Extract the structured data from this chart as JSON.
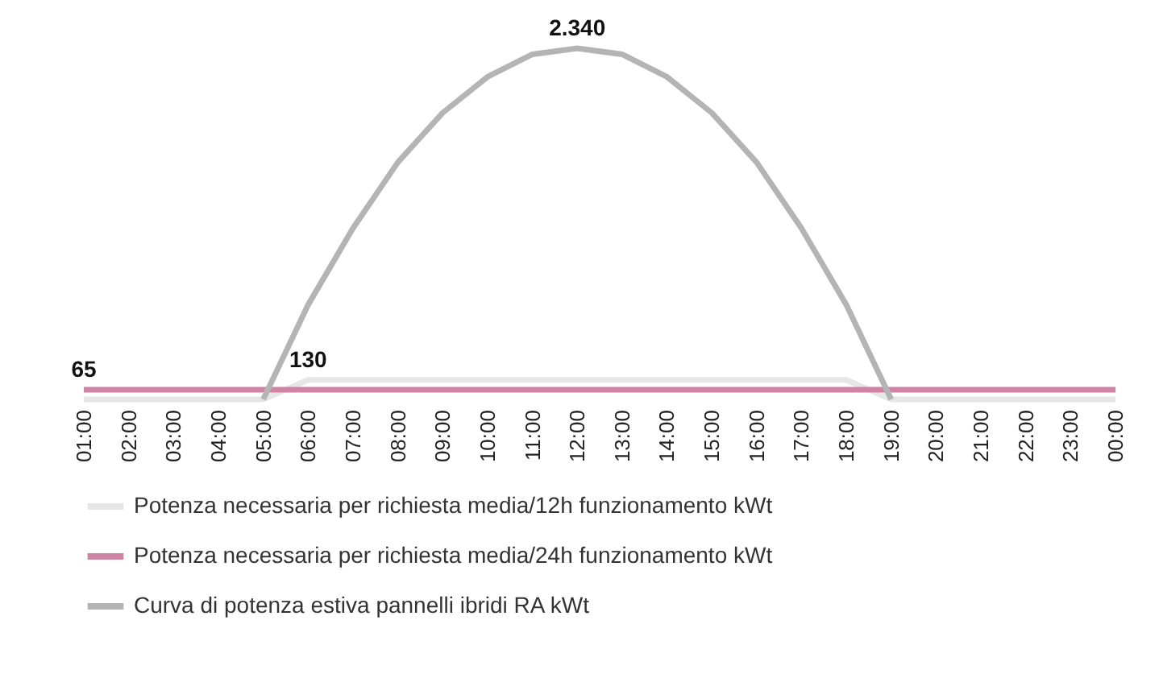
{
  "chart_data": {
    "type": "line",
    "categories": [
      "01:00",
      "02:00",
      "03:00",
      "04:00",
      "05:00",
      "06:00",
      "07:00",
      "08:00",
      "09:00",
      "10:00",
      "11:00",
      "12:00",
      "13:00",
      "14:00",
      "15:00",
      "16:00",
      "17:00",
      "18:00",
      "19:00",
      "20:00",
      "21:00",
      "22:00",
      "23:00",
      "00:00"
    ],
    "series": [
      {
        "name": "Potenza necessaria per richiesta media/12h funzionamento kWt",
        "color": "#e6e6e6",
        "values": [
          0,
          0,
          0,
          0,
          0,
          130,
          130,
          130,
          130,
          130,
          130,
          130,
          130,
          130,
          130,
          130,
          130,
          130,
          0,
          0,
          0,
          0,
          0,
          0
        ],
        "value_labels": [
          null,
          null,
          null,
          null,
          null,
          "130",
          null,
          null,
          null,
          null,
          null,
          null,
          null,
          null,
          null,
          null,
          null,
          null,
          null,
          null,
          null,
          null,
          null,
          null
        ]
      },
      {
        "name": "Potenza necessaria per richiesta media/24h funzionamento kWt",
        "color": "#d084a4",
        "values": [
          65,
          65,
          65,
          65,
          65,
          65,
          65,
          65,
          65,
          65,
          65,
          65,
          65,
          65,
          65,
          65,
          65,
          65,
          65,
          65,
          65,
          65,
          65,
          65
        ],
        "value_labels": [
          "65",
          null,
          null,
          null,
          null,
          null,
          null,
          null,
          null,
          null,
          null,
          null,
          null,
          null,
          null,
          null,
          null,
          null,
          null,
          null,
          null,
          null,
          null,
          null
        ]
      },
      {
        "name": "Curva di potenza estiva pannelli ibridi RA kWt",
        "color": "#b4b4b4",
        "values": [
          null,
          null,
          null,
          null,
          0,
          630,
          1140,
          1580,
          1910,
          2150,
          2300,
          2340,
          2300,
          2150,
          1910,
          1580,
          1140,
          630,
          0,
          null,
          null,
          null,
          null,
          null
        ],
        "value_labels": [
          null,
          null,
          null,
          null,
          null,
          null,
          null,
          null,
          null,
          null,
          null,
          "2.340",
          null,
          null,
          null,
          null,
          null,
          null,
          null,
          null,
          null,
          null,
          null,
          null
        ]
      }
    ],
    "legend": "bottom",
    "marker": "none",
    "line_style": "solid",
    "grid": false
  }
}
